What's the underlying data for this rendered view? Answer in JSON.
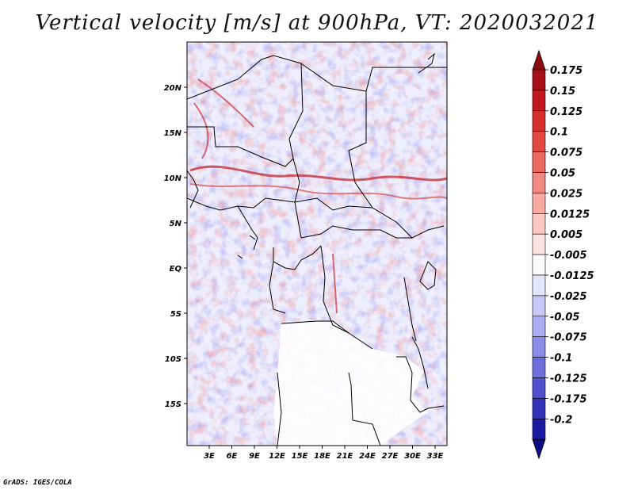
{
  "title": "Vertical velocity [m/s] at 900hPa, VT: 2020032021",
  "credit": "GrADS: IGES/COLA",
  "map": {
    "lat_labels": [
      "20N",
      "15N",
      "10N",
      "5N",
      "EQ",
      "5S",
      "10S",
      "15S"
    ],
    "lon_labels": [
      "3E",
      "6E",
      "9E",
      "12E",
      "15E",
      "18E",
      "21E",
      "24E",
      "27E",
      "30E",
      "33E"
    ]
  },
  "colorbar": {
    "levels": [
      {
        "label": "0.175",
        "color": "#a50f15"
      },
      {
        "label": "0.15",
        "color": "#c0181e"
      },
      {
        "label": "0.125",
        "color": "#d6302c"
      },
      {
        "label": "0.1",
        "color": "#e24a42"
      },
      {
        "label": "0.075",
        "color": "#ea6a60"
      },
      {
        "label": "0.05",
        "color": "#f08a80"
      },
      {
        "label": "0.025",
        "color": "#f6aaa2"
      },
      {
        "label": "0.0125",
        "color": "#fbc8c2"
      },
      {
        "label": "0.005",
        "color": "#fde4e0"
      },
      {
        "label": "-0.005",
        "color": "#ffffff"
      },
      {
        "label": "-0.0125",
        "color": "#e4e4fb"
      },
      {
        "label": "-0.025",
        "color": "#c8c8f6"
      },
      {
        "label": "-0.05",
        "color": "#aaaaf0"
      },
      {
        "label": "-0.075",
        "color": "#8c8ce8"
      },
      {
        "label": "-0.1",
        "color": "#6e6edc"
      },
      {
        "label": "-0.125",
        "color": "#5050cc"
      },
      {
        "label": "-0.175",
        "color": "#3232b8"
      },
      {
        "label": "-0.2",
        "color": "#1a1aa0"
      }
    ],
    "bottom_color": "#0c0c84",
    "top_color": "#8b0a10"
  }
}
